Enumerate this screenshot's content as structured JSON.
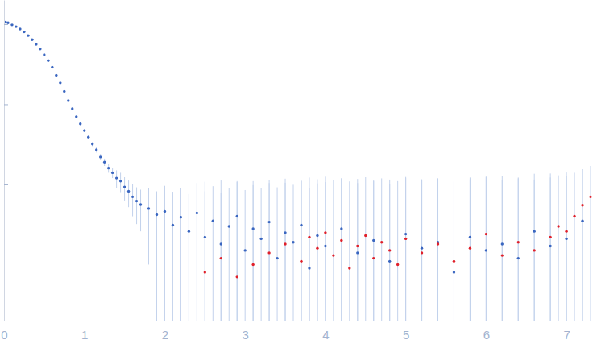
{
  "chart_data": {
    "type": "scatter",
    "log": "y",
    "tick_labels": "x",
    "grid": false,
    "xlim": [
      0,
      7.33
    ],
    "xticks": [
      0,
      1,
      2,
      3,
      4,
      5,
      6,
      7
    ],
    "ylim": [
      0.0002,
      2
    ],
    "yticks": [
      0.01,
      0.1,
      1
    ],
    "series": [
      {
        "color": "#3a66c0",
        "marker": "circle",
        "x": [
          0.02,
          0.05,
          0.1,
          0.15,
          0.2,
          0.25,
          0.3,
          0.35,
          0.4,
          0.45,
          0.5,
          0.55,
          0.6,
          0.65,
          0.7,
          0.75,
          0.8,
          0.85,
          0.9,
          0.95,
          1.0,
          1.05,
          1.1,
          1.15,
          1.2,
          1.25,
          1.3,
          1.35,
          1.4,
          1.45,
          1.5,
          1.55,
          1.6,
          1.65,
          1.7,
          1.8,
          1.9,
          2.0,
          2.1,
          2.2,
          2.3,
          2.4,
          2.5,
          2.6,
          2.7,
          2.8,
          2.9,
          3.0,
          3.1,
          3.2,
          3.3,
          3.4,
          3.5,
          3.6,
          3.7,
          3.8,
          3.9,
          4.0,
          4.2,
          4.4,
          4.6,
          4.8,
          5.0,
          5.2,
          5.4,
          5.6,
          5.8,
          6.0,
          6.2,
          6.4,
          6.6,
          6.8,
          7.0,
          7.2
        ],
        "values": [
          1.06,
          1.04,
          0.98,
          0.93,
          0.87,
          0.8,
          0.72,
          0.64,
          0.56,
          0.49,
          0.415,
          0.35,
          0.29,
          0.23,
          0.185,
          0.145,
          0.111,
          0.088,
          0.07,
          0.057,
          0.047,
          0.039,
          0.032,
          0.027,
          0.022,
          0.019,
          0.016,
          0.014,
          0.012,
          0.011,
          0.0093,
          0.0082,
          0.007,
          0.0062,
          0.0056,
          0.005,
          0.0042,
          0.0046,
          0.0031,
          0.0039,
          0.0026,
          0.0044,
          0.0022,
          0.0035,
          0.0018,
          0.003,
          0.004,
          0.0015,
          0.0028,
          0.0021,
          0.0034,
          0.0012,
          0.0025,
          0.0019,
          0.0031,
          0.0009,
          0.0023,
          0.0017,
          0.0028,
          0.0014,
          0.002,
          0.0011,
          0.0024,
          0.0016,
          0.0019,
          0.0008,
          0.0022,
          0.0015,
          0.0018,
          0.0012,
          0.0026,
          0.0017,
          0.0021,
          0.0035
        ],
        "errors": [
          0.01,
          0.008,
          0.007,
          0.006,
          0.005,
          0.005,
          0.004,
          0.004,
          0.004,
          0.003,
          0.003,
          0.003,
          0.003,
          0.002,
          0.002,
          0.002,
          0.002,
          0.002,
          0.002,
          0.002,
          0.002,
          0.002,
          0.002,
          0.002,
          0.002,
          0.002,
          0.002,
          0.002,
          0.003,
          0.003,
          0.003,
          0.003,
          0.003,
          0.003,
          0.003,
          0.004,
          0.004,
          0.005,
          0.005,
          0.005,
          0.005,
          0.006,
          0.006,
          0.006,
          0.006,
          0.006,
          0.007,
          0.007,
          0.007,
          0.007,
          0.007,
          0.008,
          0.008,
          0.008,
          0.008,
          0.008,
          0.008,
          0.009,
          0.009,
          0.009,
          0.009,
          0.009,
          0.01,
          0.01,
          0.01,
          0.01,
          0.01,
          0.011,
          0.011,
          0.011,
          0.011,
          0.012,
          0.012,
          0.012
        ]
      },
      {
        "color": "#e0202a",
        "marker": "circle",
        "x": [
          2.5,
          2.7,
          2.9,
          3.1,
          3.3,
          3.5,
          3.7,
          3.8,
          3.9,
          4.0,
          4.1,
          4.2,
          4.3,
          4.4,
          4.5,
          4.6,
          4.7,
          4.8,
          4.9,
          5.0,
          5.2,
          5.4,
          5.6,
          5.8,
          6.0,
          6.2,
          6.4,
          6.6,
          6.8,
          6.9,
          7.0,
          7.1,
          7.2,
          7.3
        ],
        "values": [
          0.0008,
          0.0012,
          0.0007,
          0.001,
          0.0014,
          0.0018,
          0.0011,
          0.0022,
          0.0016,
          0.0025,
          0.0013,
          0.002,
          0.0009,
          0.0017,
          0.0023,
          0.0012,
          0.0019,
          0.0015,
          0.001,
          0.0021,
          0.0014,
          0.0018,
          0.0011,
          0.0016,
          0.0024,
          0.0013,
          0.0019,
          0.0015,
          0.0022,
          0.003,
          0.0026,
          0.004,
          0.0055,
          0.007
        ],
        "errors": [
          0.01,
          0.01,
          0.01,
          0.01,
          0.01,
          0.01,
          0.01,
          0.01,
          0.01,
          0.01,
          0.01,
          0.01,
          0.01,
          0.01,
          0.01,
          0.01,
          0.01,
          0.01,
          0.01,
          0.01,
          0.01,
          0.01,
          0.01,
          0.01,
          0.01,
          0.01,
          0.01,
          0.01,
          0.01,
          0.01,
          0.01,
          0.01,
          0.01,
          0.01
        ]
      }
    ]
  }
}
